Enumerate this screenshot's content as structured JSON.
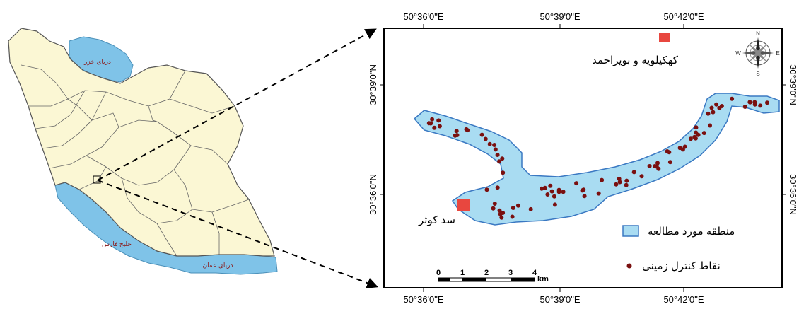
{
  "iran_map": {
    "seas": {
      "caspian": "دریای خزر",
      "persian_gulf": "خلیج فارس",
      "oman_sea": "دریای عمان"
    },
    "colors": {
      "land": "#fbf7d4",
      "water": "#7fc3e8",
      "border": "#555555"
    }
  },
  "study_map": {
    "x_ticks": [
      "50°36'0\"E",
      "50°39'0\"E",
      "50°42'0\"E"
    ],
    "y_ticks": [
      "30°39'0\"N",
      "30°36'0\"N"
    ],
    "province_label": "کهکیلویه و بویراحمد",
    "dam_label": "سد کوثر",
    "legend": {
      "study_area": "منطقه مورد مطالعه",
      "control_points": "نقاط کنترل زمینی"
    },
    "scale_bar": {
      "ticks": [
        "0",
        "1",
        "2",
        "3",
        "4"
      ],
      "unit": "km"
    },
    "compass": {
      "n": "N",
      "s": "S",
      "e": "E",
      "w": "W"
    },
    "colors": {
      "study_area": "#a9dcf2",
      "outline": "#3a78c2",
      "points": "#7a1010",
      "marker": "#e8473f"
    }
  }
}
